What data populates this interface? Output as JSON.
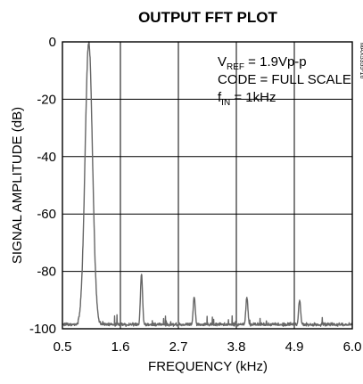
{
  "chart_data": {
    "type": "line",
    "title": "OUTPUT FFT PLOT",
    "xlabel": "FREQUENCY (kHz)",
    "ylabel": "SIGNAL AMPLITUDE (dB)",
    "xlim": [
      0.5,
      6.0
    ],
    "ylim": [
      -100,
      0
    ],
    "x_ticks": [
      "0.5",
      "1.6",
      "2.7",
      "3.8",
      "4.9",
      "6.0"
    ],
    "y_ticks": [
      "0",
      "-20",
      "-40",
      "-60",
      "-80",
      "-100"
    ],
    "grid": true,
    "series_color": "#666666",
    "annotations": {
      "vref": {
        "main": "V",
        "sub": "REF",
        "rest": " = 1.9Vp-p"
      },
      "code": "CODE = FULL SCALE",
      "fin": {
        "main": "f",
        "sub": "IN",
        "rest": " = 1kHz"
      }
    },
    "side_code": "MAX5355-16",
    "spectrum": {
      "noise_floor": -99,
      "peaks": [
        {
          "x": 1.0,
          "y": 0,
          "width": 0.07
        },
        {
          "x": 2.0,
          "y": -81,
          "width": 0.02
        },
        {
          "x": 3.0,
          "y": -89,
          "width": 0.02
        },
        {
          "x": 4.0,
          "y": -89,
          "width": 0.02
        },
        {
          "x": 5.0,
          "y": -90,
          "width": 0.02
        }
      ]
    }
  }
}
